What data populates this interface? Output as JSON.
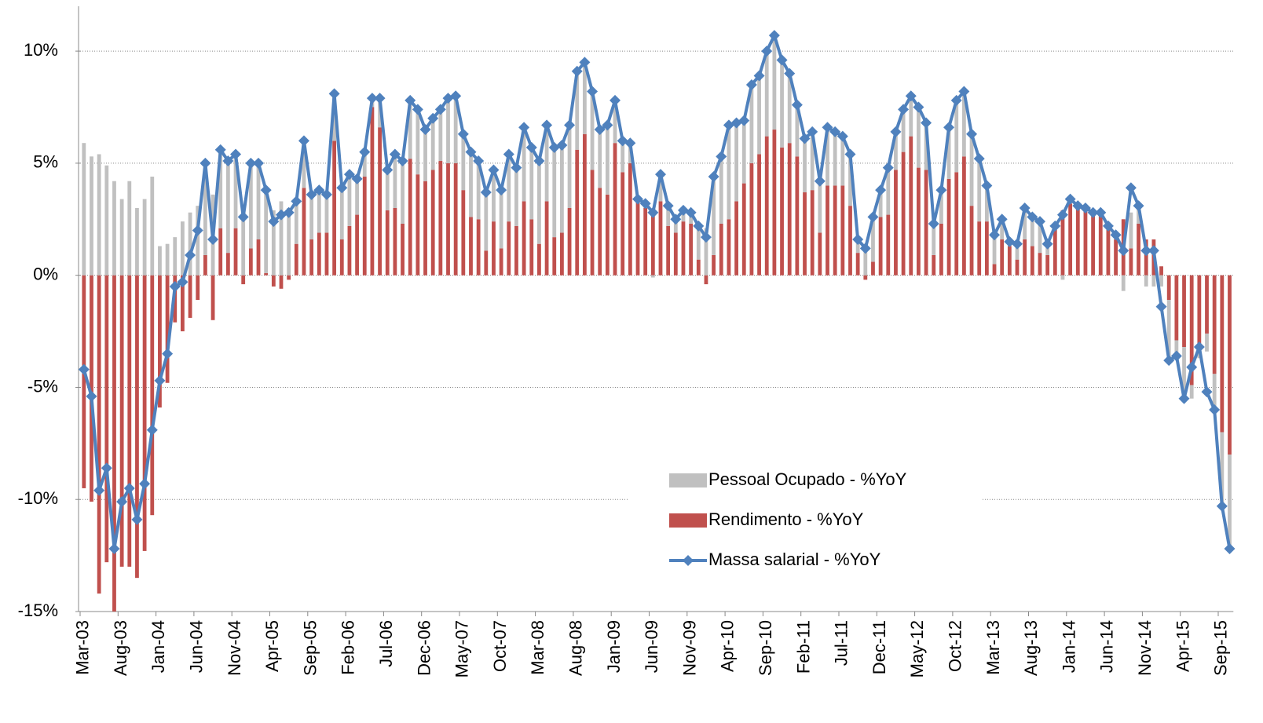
{
  "chart_data": {
    "type": "bar",
    "stacked": true,
    "categories": [
      "Mar-03",
      null,
      null,
      null,
      null,
      "Aug-03",
      null,
      null,
      null,
      null,
      "Jan-04",
      null,
      null,
      null,
      null,
      "Jun-04",
      null,
      null,
      null,
      null,
      "Nov-04",
      null,
      null,
      null,
      null,
      "Apr-05",
      null,
      null,
      null,
      null,
      "Sep-05",
      null,
      null,
      null,
      null,
      "Feb-06",
      null,
      null,
      null,
      null,
      "Jul-06",
      null,
      null,
      null,
      null,
      "Dec-06",
      null,
      null,
      null,
      null,
      "May-07",
      null,
      null,
      null,
      null,
      "Oct-07",
      null,
      null,
      null,
      null,
      "Mar-08",
      null,
      null,
      null,
      null,
      "Aug-08",
      null,
      null,
      null,
      null,
      "Jan-09",
      null,
      null,
      null,
      null,
      "Jun-09",
      null,
      null,
      null,
      null,
      "Nov-09",
      null,
      null,
      null,
      null,
      "Apr-10",
      null,
      null,
      null,
      null,
      "Sep-10",
      null,
      null,
      null,
      null,
      "Feb-11",
      null,
      null,
      null,
      null,
      "Jul-11",
      null,
      null,
      null,
      null,
      "Dec-11",
      null,
      null,
      null,
      null,
      "May-12",
      null,
      null,
      null,
      null,
      "Oct-12",
      null,
      null,
      null,
      null,
      "Mar-13",
      null,
      null,
      null,
      null,
      "Aug-13",
      null,
      null,
      null,
      null,
      "Jan-14",
      null,
      null,
      null,
      null,
      "Jun-14",
      null,
      null,
      null,
      null,
      "Nov-14",
      null,
      null,
      null,
      null,
      "Apr-15",
      null,
      null,
      null,
      null,
      "Sep-15",
      null
    ],
    "series": [
      {
        "name": "Pessoal Ocupado - %YoY",
        "type": "bar",
        "color": "#c0c0c0",
        "values": [
          5.9,
          5.3,
          5.4,
          4.9,
          4.2,
          3.4,
          4.2,
          3.0,
          3.4,
          4.4,
          1.3,
          1.4,
          1.7,
          2.4,
          2.8,
          3.1,
          4.1,
          3.6,
          3.5,
          4.1,
          3.3,
          3.0,
          3.8,
          3.4,
          3.7,
          2.9,
          3.3,
          3.0,
          1.9,
          2.1,
          2.0,
          1.9,
          1.7,
          2.1,
          2.3,
          2.3,
          1.6,
          1.1,
          0.4,
          1.3,
          1.8,
          2.4,
          2.8,
          2.6,
          2.9,
          2.3,
          2.3,
          2.3,
          2.9,
          3.0,
          2.5,
          2.9,
          2.6,
          2.6,
          2.3,
          2.6,
          3.0,
          2.6,
          3.3,
          3.2,
          3.7,
          3.4,
          4.0,
          3.9,
          3.7,
          3.5,
          3.2,
          3.5,
          2.6,
          3.1,
          1.9,
          1.4,
          0.9,
          0.1,
          0.2,
          -0.1,
          1.2,
          0.9,
          0.6,
          0.5,
          0.5,
          1.5,
          2.1,
          3.5,
          3.0,
          4.2,
          3.5,
          2.8,
          3.5,
          3.5,
          3.8,
          4.2,
          3.9,
          3.1,
          2.3,
          2.4,
          2.6,
          2.3,
          2.6,
          2.4,
          2.2,
          2.3,
          0.6,
          1.4,
          2.0,
          1.2,
          2.1,
          1.7,
          1.9,
          1.8,
          2.7,
          2.1,
          1.4,
          1.5,
          2.3,
          3.2,
          2.9,
          3.2,
          2.8,
          1.6,
          1.3,
          0.9,
          0.2,
          0.7,
          1.4,
          1.3,
          1.4,
          0.5,
          0.1,
          -0.2,
          0.2,
          0.1,
          0.1,
          0.0,
          0.1,
          0.1,
          0.2,
          -0.7,
          1.6,
          0.8,
          -0.5,
          -0.5,
          -0.5,
          -2.7,
          -0.7,
          -2.3,
          -0.6,
          -0.6,
          -0.8,
          -1.6,
          -3.3,
          -4.2
        ]
      },
      {
        "name": "Rendimento - %YoY",
        "type": "bar",
        "color": "#c0504d",
        "values": [
          -9.5,
          -10.1,
          -14.2,
          -12.8,
          -15.0,
          -13.0,
          -13.0,
          -13.5,
          -12.3,
          -10.7,
          -5.9,
          -4.8,
          -2.1,
          -2.5,
          -1.9,
          -1.1,
          0.9,
          -2.0,
          2.1,
          1.0,
          2.1,
          -0.4,
          1.2,
          1.6,
          0.1,
          -0.5,
          -0.6,
          -0.2,
          1.4,
          3.9,
          1.6,
          1.9,
          1.9,
          6.0,
          1.6,
          2.2,
          2.7,
          4.4,
          7.5,
          6.6,
          2.9,
          3.0,
          2.3,
          5.2,
          4.5,
          4.2,
          4.7,
          5.1,
          5.0,
          5.0,
          3.8,
          2.6,
          2.5,
          1.1,
          2.4,
          1.2,
          2.4,
          2.2,
          3.3,
          2.5,
          1.4,
          3.3,
          1.7,
          1.9,
          3.0,
          5.6,
          6.3,
          4.7,
          3.9,
          3.6,
          5.9,
          4.6,
          5.0,
          3.3,
          3.0,
          2.9,
          3.3,
          2.2,
          1.9,
          2.4,
          2.3,
          0.7,
          -0.4,
          0.9,
          2.3,
          2.5,
          3.3,
          4.1,
          5.0,
          5.4,
          6.2,
          6.5,
          5.7,
          5.9,
          5.3,
          3.7,
          3.8,
          1.9,
          4.0,
          4.0,
          4.0,
          3.1,
          1.0,
          -0.2,
          0.6,
          2.6,
          2.7,
          4.7,
          5.5,
          6.2,
          4.8,
          4.7,
          0.9,
          2.3,
          4.3,
          4.6,
          5.3,
          3.1,
          2.4,
          2.4,
          0.5,
          1.6,
          1.3,
          0.7,
          1.6,
          1.3,
          1.0,
          0.9,
          2.1,
          2.9,
          3.2,
          3.0,
          2.9,
          2.8,
          2.7,
          2.1,
          1.6,
          2.5,
          1.2,
          2.3,
          1.6,
          1.6,
          0.4,
          -1.1,
          -2.9,
          -3.2,
          -4.9,
          -3.1,
          -2.6,
          -4.4,
          -7.0,
          -8.0
        ]
      },
      {
        "name": "Massa salarial - %YoY",
        "type": "line",
        "color": "#4f81bd",
        "values": [
          -4.2,
          -5.4,
          -9.6,
          -8.6,
          -12.2,
          -10.1,
          -9.5,
          -10.9,
          -9.3,
          -6.9,
          -4.7,
          -3.5,
          -0.5,
          -0.3,
          0.9,
          2.0,
          5.0,
          1.6,
          5.6,
          5.1,
          5.4,
          2.6,
          5.0,
          5.0,
          3.8,
          2.4,
          2.7,
          2.8,
          3.3,
          6.0,
          3.6,
          3.8,
          3.6,
          8.1,
          3.9,
          4.5,
          4.3,
          5.5,
          7.9,
          7.9,
          4.7,
          5.4,
          5.1,
          7.8,
          7.4,
          6.5,
          7.0,
          7.4,
          7.9,
          8.0,
          6.3,
          5.5,
          5.1,
          3.7,
          4.7,
          3.8,
          5.4,
          4.8,
          6.6,
          5.7,
          5.1,
          6.7,
          5.7,
          5.8,
          6.7,
          9.1,
          9.5,
          8.2,
          6.5,
          6.7,
          7.8,
          6.0,
          5.9,
          3.4,
          3.2,
          2.8,
          4.5,
          3.1,
          2.5,
          2.9,
          2.8,
          2.2,
          1.7,
          4.4,
          5.3,
          6.7,
          6.8,
          6.9,
          8.5,
          8.9,
          10.0,
          10.7,
          9.6,
          9.0,
          7.6,
          6.1,
          6.4,
          4.2,
          6.6,
          6.4,
          6.2,
          5.4,
          1.6,
          1.2,
          2.6,
          3.8,
          4.8,
          6.4,
          7.4,
          8.0,
          7.5,
          6.8,
          2.3,
          3.8,
          6.6,
          7.8,
          8.2,
          6.3,
          5.2,
          4.0,
          1.8,
          2.5,
          1.5,
          1.4,
          3.0,
          2.6,
          2.4,
          1.4,
          2.2,
          2.7,
          3.4,
          3.1,
          3.0,
          2.8,
          2.8,
          2.2,
          1.8,
          1.1,
          3.9,
          3.1,
          1.1,
          1.1,
          -1.4,
          -3.8,
          -3.6,
          -5.5,
          -4.1,
          -3.2,
          -5.2,
          -6.0,
          -10.3,
          -12.2
        ]
      }
    ],
    "ylim": [
      -15,
      12
    ],
    "yticks": [
      {
        "value": -15,
        "label": "-15%"
      },
      {
        "value": -10,
        "label": "-10%"
      },
      {
        "value": -5,
        "label": "-5%"
      },
      {
        "value": 0,
        "label": "0%"
      },
      {
        "value": 5,
        "label": "5%"
      },
      {
        "value": 10,
        "label": "10%"
      }
    ],
    "grid": true,
    "legend": "center-right"
  }
}
